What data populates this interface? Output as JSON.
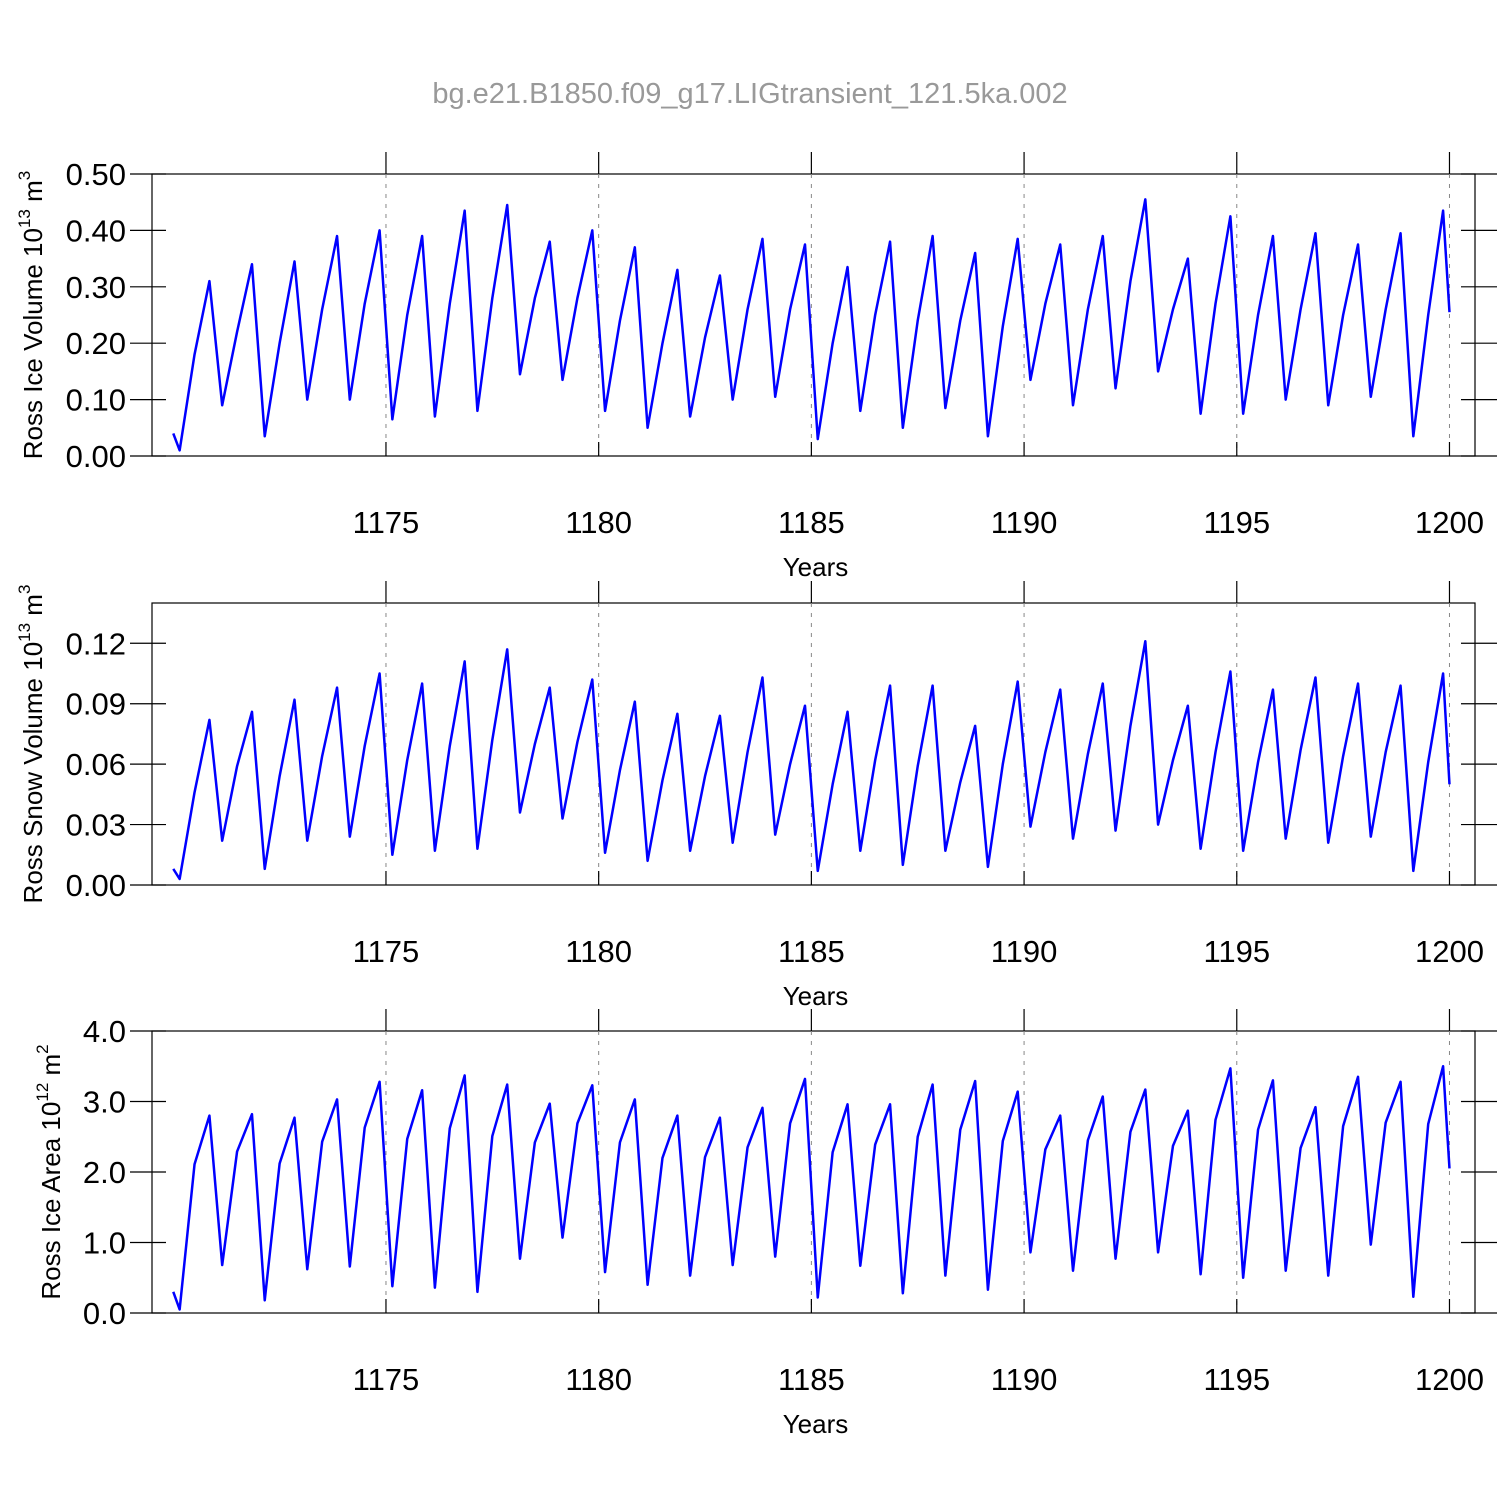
{
  "title": "bg.e21.B1850.f09_g17.LIGtransient_121.5ka.002",
  "chart_data": [
    {
      "type": "line",
      "ylabel": [
        "Ross Ice Volume 10",
        "13",
        " m",
        "3"
      ],
      "xlabel": "Years",
      "color": "#0000ff",
      "grid": true,
      "xlim": [
        1169.5,
        1200.6
      ],
      "xticks": [
        1175,
        1180,
        1185,
        1190,
        1195,
        1200
      ],
      "ylim": [
        0,
        0.5
      ],
      "yticks": [
        {
          "value": 0,
          "label": "0.00"
        },
        {
          "value": 0.1,
          "label": "0.10"
        },
        {
          "value": 0.2,
          "label": "0.20"
        },
        {
          "value": 0.3,
          "label": "0.30"
        },
        {
          "value": 0.4,
          "label": "0.40"
        },
        {
          "value": 0.5,
          "label": "0.50"
        }
      ],
      "x": [
        1170,
        1170.15,
        1170.5,
        1170.85,
        1171.15,
        1171.5,
        1171.85,
        1172.15,
        1172.5,
        1172.85,
        1173.15,
        1173.5,
        1173.85,
        1174.15,
        1174.5,
        1174.85,
        1175.15,
        1175.5,
        1175.85,
        1176.15,
        1176.5,
        1176.85,
        1177.15,
        1177.5,
        1177.85,
        1178.15,
        1178.5,
        1178.85,
        1179.15,
        1179.5,
        1179.85,
        1180.15,
        1180.5,
        1180.85,
        1181.15,
        1181.5,
        1181.85,
        1182.15,
        1182.5,
        1182.85,
        1183.15,
        1183.5,
        1183.85,
        1184.15,
        1184.5,
        1184.85,
        1185.15,
        1185.5,
        1185.85,
        1186.15,
        1186.5,
        1186.85,
        1187.15,
        1187.5,
        1187.85,
        1188.15,
        1188.5,
        1188.85,
        1189.15,
        1189.5,
        1189.85,
        1190.15,
        1190.5,
        1190.85,
        1191.15,
        1191.5,
        1191.85,
        1192.15,
        1192.5,
        1192.85,
        1193.15,
        1193.5,
        1193.85,
        1194.15,
        1194.5,
        1194.85,
        1195.15,
        1195.5,
        1195.85,
        1196.15,
        1196.5,
        1196.85,
        1197.15,
        1197.5,
        1197.85,
        1198.15,
        1198.5,
        1198.85,
        1199.15,
        1199.5,
        1199.85,
        1200
      ],
      "values": [
        0.04,
        0.01,
        0.18,
        0.31,
        0.09,
        0.22,
        0.34,
        0.035,
        0.2,
        0.345,
        0.1,
        0.26,
        0.39,
        0.1,
        0.27,
        0.4,
        0.065,
        0.25,
        0.39,
        0.07,
        0.27,
        0.435,
        0.08,
        0.28,
        0.445,
        0.145,
        0.28,
        0.38,
        0.135,
        0.28,
        0.4,
        0.08,
        0.24,
        0.37,
        0.05,
        0.2,
        0.33,
        0.07,
        0.21,
        0.32,
        0.1,
        0.26,
        0.385,
        0.105,
        0.26,
        0.375,
        0.03,
        0.2,
        0.335,
        0.08,
        0.25,
        0.38,
        0.05,
        0.24,
        0.39,
        0.085,
        0.24,
        0.36,
        0.035,
        0.23,
        0.385,
        0.135,
        0.27,
        0.375,
        0.09,
        0.26,
        0.39,
        0.12,
        0.31,
        0.455,
        0.15,
        0.26,
        0.35,
        0.075,
        0.27,
        0.425,
        0.075,
        0.25,
        0.39,
        0.1,
        0.26,
        0.395,
        0.09,
        0.25,
        0.375,
        0.105,
        0.26,
        0.395,
        0.035,
        0.25,
        0.435,
        0.255
      ]
    },
    {
      "type": "line",
      "ylabel": [
        "Ross Snow Volume 10",
        "13",
        " m",
        "3"
      ],
      "xlabel": "Years",
      "color": "#0000ff",
      "grid": true,
      "xlim": [
        1169.5,
        1200.6
      ],
      "xticks": [
        1175,
        1180,
        1185,
        1190,
        1195,
        1200
      ],
      "ylim": [
        0,
        0.14
      ],
      "yticks": [
        {
          "value": 0,
          "label": "0.00"
        },
        {
          "value": 0.03,
          "label": "0.03"
        },
        {
          "value": 0.06,
          "label": "0.06"
        },
        {
          "value": 0.09,
          "label": "0.09"
        },
        {
          "value": 0.12,
          "label": "0.12"
        }
      ],
      "x": [
        1170,
        1170.15,
        1170.5,
        1170.85,
        1171.15,
        1171.5,
        1171.85,
        1172.15,
        1172.5,
        1172.85,
        1173.15,
        1173.5,
        1173.85,
        1174.15,
        1174.5,
        1174.85,
        1175.15,
        1175.5,
        1175.85,
        1176.15,
        1176.5,
        1176.85,
        1177.15,
        1177.5,
        1177.85,
        1178.15,
        1178.5,
        1178.85,
        1179.15,
        1179.5,
        1179.85,
        1180.15,
        1180.5,
        1180.85,
        1181.15,
        1181.5,
        1181.85,
        1182.15,
        1182.5,
        1182.85,
        1183.15,
        1183.5,
        1183.85,
        1184.15,
        1184.5,
        1184.85,
        1185.15,
        1185.5,
        1185.85,
        1186.15,
        1186.5,
        1186.85,
        1187.15,
        1187.5,
        1187.85,
        1188.15,
        1188.5,
        1188.85,
        1189.15,
        1189.5,
        1189.85,
        1190.15,
        1190.5,
        1190.85,
        1191.15,
        1191.5,
        1191.85,
        1192.15,
        1192.5,
        1192.85,
        1193.15,
        1193.5,
        1193.85,
        1194.15,
        1194.5,
        1194.85,
        1195.15,
        1195.5,
        1195.85,
        1196.15,
        1196.5,
        1196.85,
        1197.15,
        1197.5,
        1197.85,
        1198.15,
        1198.5,
        1198.85,
        1199.15,
        1199.5,
        1199.85,
        1200
      ],
      "values": [
        0.008,
        0.003,
        0.046,
        0.082,
        0.022,
        0.059,
        0.086,
        0.008,
        0.054,
        0.092,
        0.022,
        0.064,
        0.098,
        0.024,
        0.069,
        0.105,
        0.015,
        0.062,
        0.1,
        0.017,
        0.069,
        0.111,
        0.018,
        0.072,
        0.117,
        0.036,
        0.07,
        0.098,
        0.033,
        0.071,
        0.102,
        0.016,
        0.057,
        0.091,
        0.012,
        0.052,
        0.085,
        0.017,
        0.054,
        0.084,
        0.021,
        0.066,
        0.103,
        0.025,
        0.06,
        0.089,
        0.007,
        0.05,
        0.086,
        0.017,
        0.062,
        0.099,
        0.01,
        0.059,
        0.099,
        0.017,
        0.051,
        0.079,
        0.009,
        0.06,
        0.101,
        0.029,
        0.066,
        0.097,
        0.023,
        0.065,
        0.1,
        0.027,
        0.079,
        0.121,
        0.03,
        0.062,
        0.089,
        0.018,
        0.066,
        0.106,
        0.017,
        0.061,
        0.097,
        0.023,
        0.067,
        0.103,
        0.021,
        0.064,
        0.1,
        0.024,
        0.066,
        0.099,
        0.007,
        0.061,
        0.105,
        0.05
      ]
    },
    {
      "type": "line",
      "ylabel": [
        "Ross Ice Area 10",
        "12",
        " m",
        "2"
      ],
      "xlabel": "Years",
      "color": "#0000ff",
      "grid": true,
      "xlim": [
        1169.5,
        1200.6
      ],
      "xticks": [
        1175,
        1180,
        1185,
        1190,
        1195,
        1200
      ],
      "ylim": [
        0,
        4
      ],
      "yticks": [
        {
          "value": 0,
          "label": "0.0"
        },
        {
          "value": 1,
          "label": "1.0"
        },
        {
          "value": 2,
          "label": "2.0"
        },
        {
          "value": 3,
          "label": "3.0"
        },
        {
          "value": 4,
          "label": "4.0"
        }
      ],
      "x": [
        1170,
        1170.15,
        1170.5,
        1170.85,
        1171.15,
        1171.5,
        1171.85,
        1172.15,
        1172.5,
        1172.85,
        1173.15,
        1173.5,
        1173.85,
        1174.15,
        1174.5,
        1174.85,
        1175.15,
        1175.5,
        1175.85,
        1176.15,
        1176.5,
        1176.85,
        1177.15,
        1177.5,
        1177.85,
        1178.15,
        1178.5,
        1178.85,
        1179.15,
        1179.5,
        1179.85,
        1180.15,
        1180.5,
        1180.85,
        1181.15,
        1181.5,
        1181.85,
        1182.15,
        1182.5,
        1182.85,
        1183.15,
        1183.5,
        1183.85,
        1184.15,
        1184.5,
        1184.85,
        1185.15,
        1185.5,
        1185.85,
        1186.15,
        1186.5,
        1186.85,
        1187.15,
        1187.5,
        1187.85,
        1188.15,
        1188.5,
        1188.85,
        1189.15,
        1189.5,
        1189.85,
        1190.15,
        1190.5,
        1190.85,
        1191.15,
        1191.5,
        1191.85,
        1192.15,
        1192.5,
        1192.85,
        1193.15,
        1193.5,
        1193.85,
        1194.15,
        1194.5,
        1194.85,
        1195.15,
        1195.5,
        1195.85,
        1196.15,
        1196.5,
        1196.85,
        1197.15,
        1197.5,
        1197.85,
        1198.15,
        1198.5,
        1198.85,
        1199.15,
        1199.5,
        1199.85,
        1200
      ],
      "values": [
        0.3,
        0.05,
        2.11,
        2.8,
        0.68,
        2.29,
        2.82,
        0.18,
        2.12,
        2.77,
        0.62,
        2.43,
        3.03,
        0.66,
        2.63,
        3.28,
        0.38,
        2.47,
        3.16,
        0.36,
        2.62,
        3.37,
        0.3,
        2.51,
        3.24,
        0.77,
        2.42,
        2.97,
        1.07,
        2.69,
        3.23,
        0.58,
        2.42,
        3.03,
        0.4,
        2.2,
        2.8,
        0.53,
        2.21,
        2.77,
        0.68,
        2.35,
        2.91,
        0.8,
        2.69,
        3.32,
        0.22,
        2.28,
        2.96,
        0.67,
        2.39,
        2.96,
        0.28,
        2.5,
        3.24,
        0.53,
        2.6,
        3.29,
        0.33,
        2.44,
        3.14,
        0.86,
        2.32,
        2.8,
        0.6,
        2.45,
        3.07,
        0.77,
        2.57,
        3.17,
        0.86,
        2.37,
        2.87,
        0.55,
        2.74,
        3.47,
        0.5,
        2.6,
        3.3,
        0.6,
        2.34,
        2.92,
        0.53,
        2.65,
        3.35,
        0.97,
        2.7,
        3.28,
        0.23,
        2.68,
        3.5,
        2.05
      ]
    }
  ]
}
